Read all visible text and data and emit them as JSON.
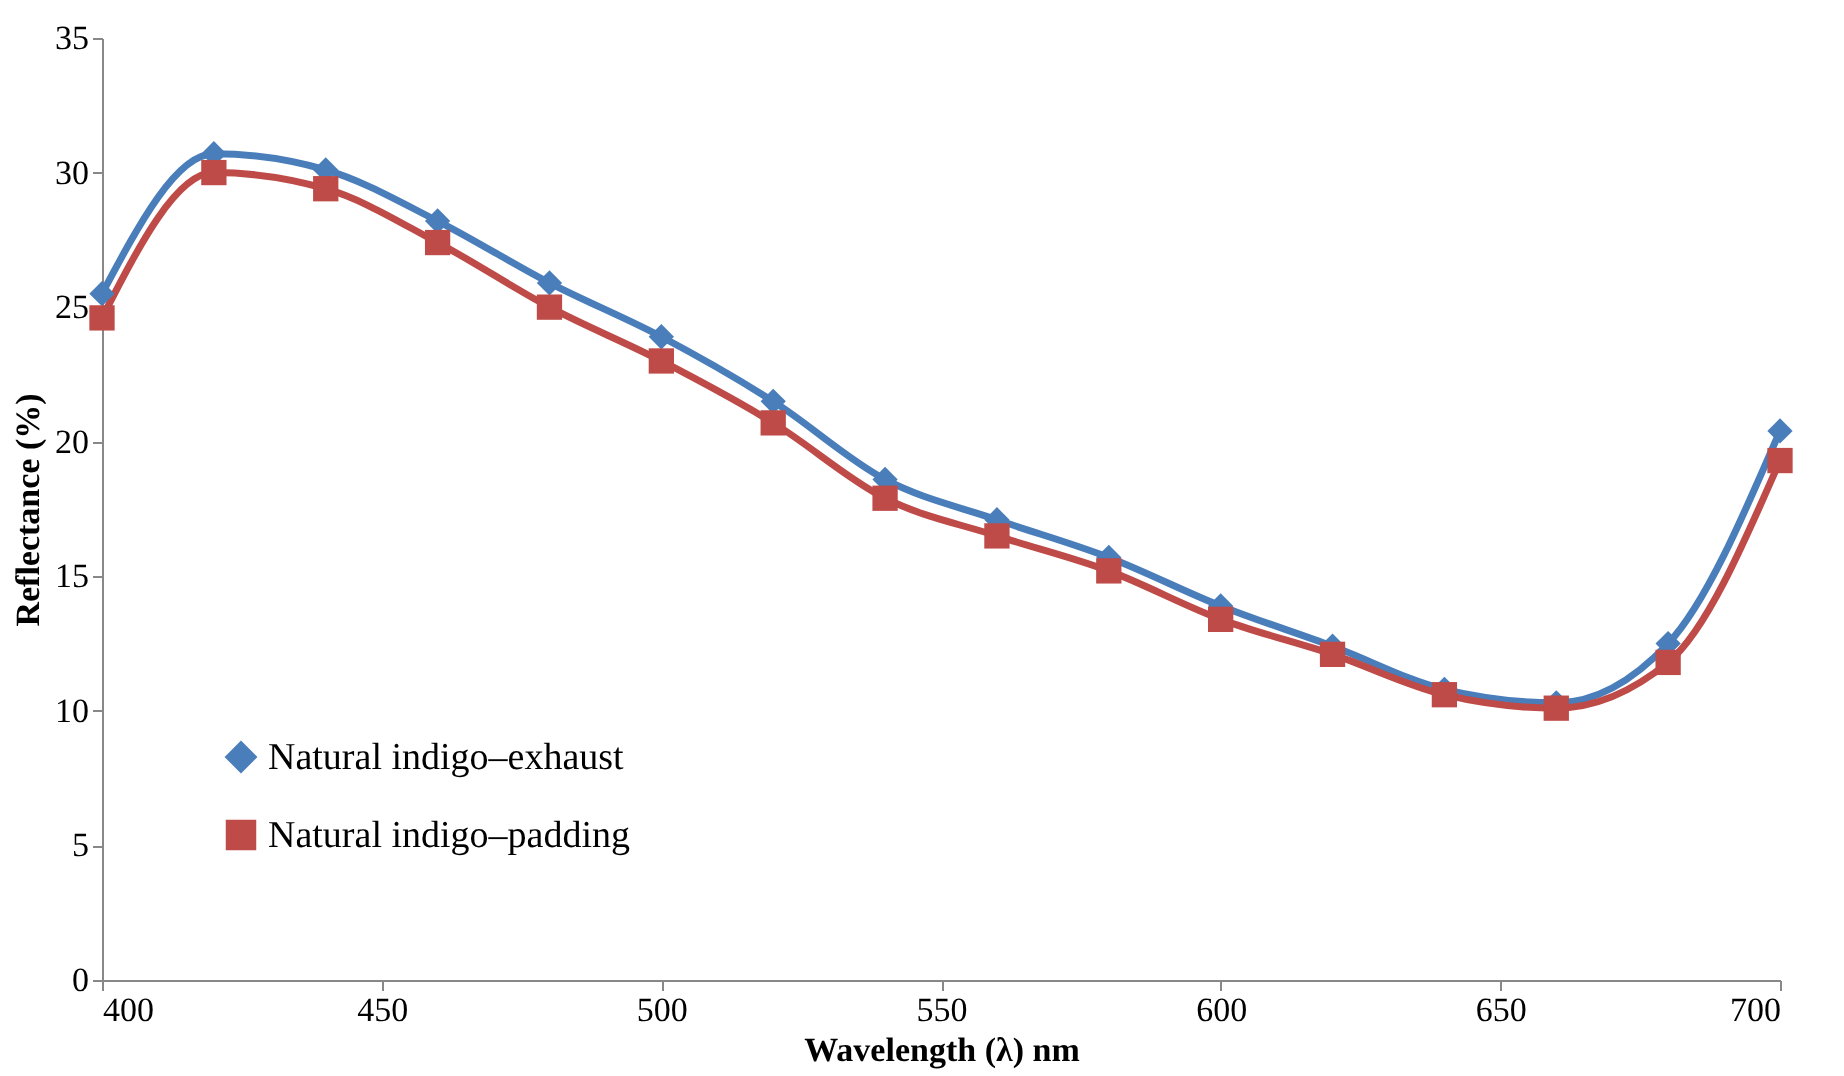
{
  "chart_data": {
    "type": "line",
    "xlabel": "Wavelength (λ) nm",
    "ylabel": "Reflectance (%)",
    "x": [
      400,
      420,
      440,
      460,
      480,
      500,
      520,
      540,
      560,
      580,
      600,
      620,
      640,
      660,
      680,
      700
    ],
    "series": [
      {
        "name": "Natural indigo–exhaust",
        "color": "#4a7ebb",
        "marker": "diamond",
        "values": [
          25.5,
          30.7,
          30.1,
          28.2,
          25.9,
          23.9,
          21.5,
          18.6,
          17.1,
          15.7,
          13.9,
          12.4,
          10.8,
          10.3,
          12.5,
          20.4
        ]
      },
      {
        "name": "Natural indigo–padding",
        "color": "#be4b48",
        "marker": "square",
        "values": [
          24.6,
          30.0,
          29.4,
          27.4,
          25.0,
          23.0,
          20.7,
          17.9,
          16.5,
          15.2,
          13.4,
          12.1,
          10.6,
          10.1,
          11.8,
          19.3
        ]
      }
    ],
    "xlim": [
      400,
      700
    ],
    "xticks": [
      400,
      450,
      500,
      550,
      600,
      650,
      700
    ],
    "ylim": [
      0,
      35
    ],
    "yticks": [
      0,
      5,
      10,
      15,
      20,
      25,
      30,
      35
    ],
    "grid": false,
    "legend": "bottom left",
    "line_style": "solid"
  }
}
